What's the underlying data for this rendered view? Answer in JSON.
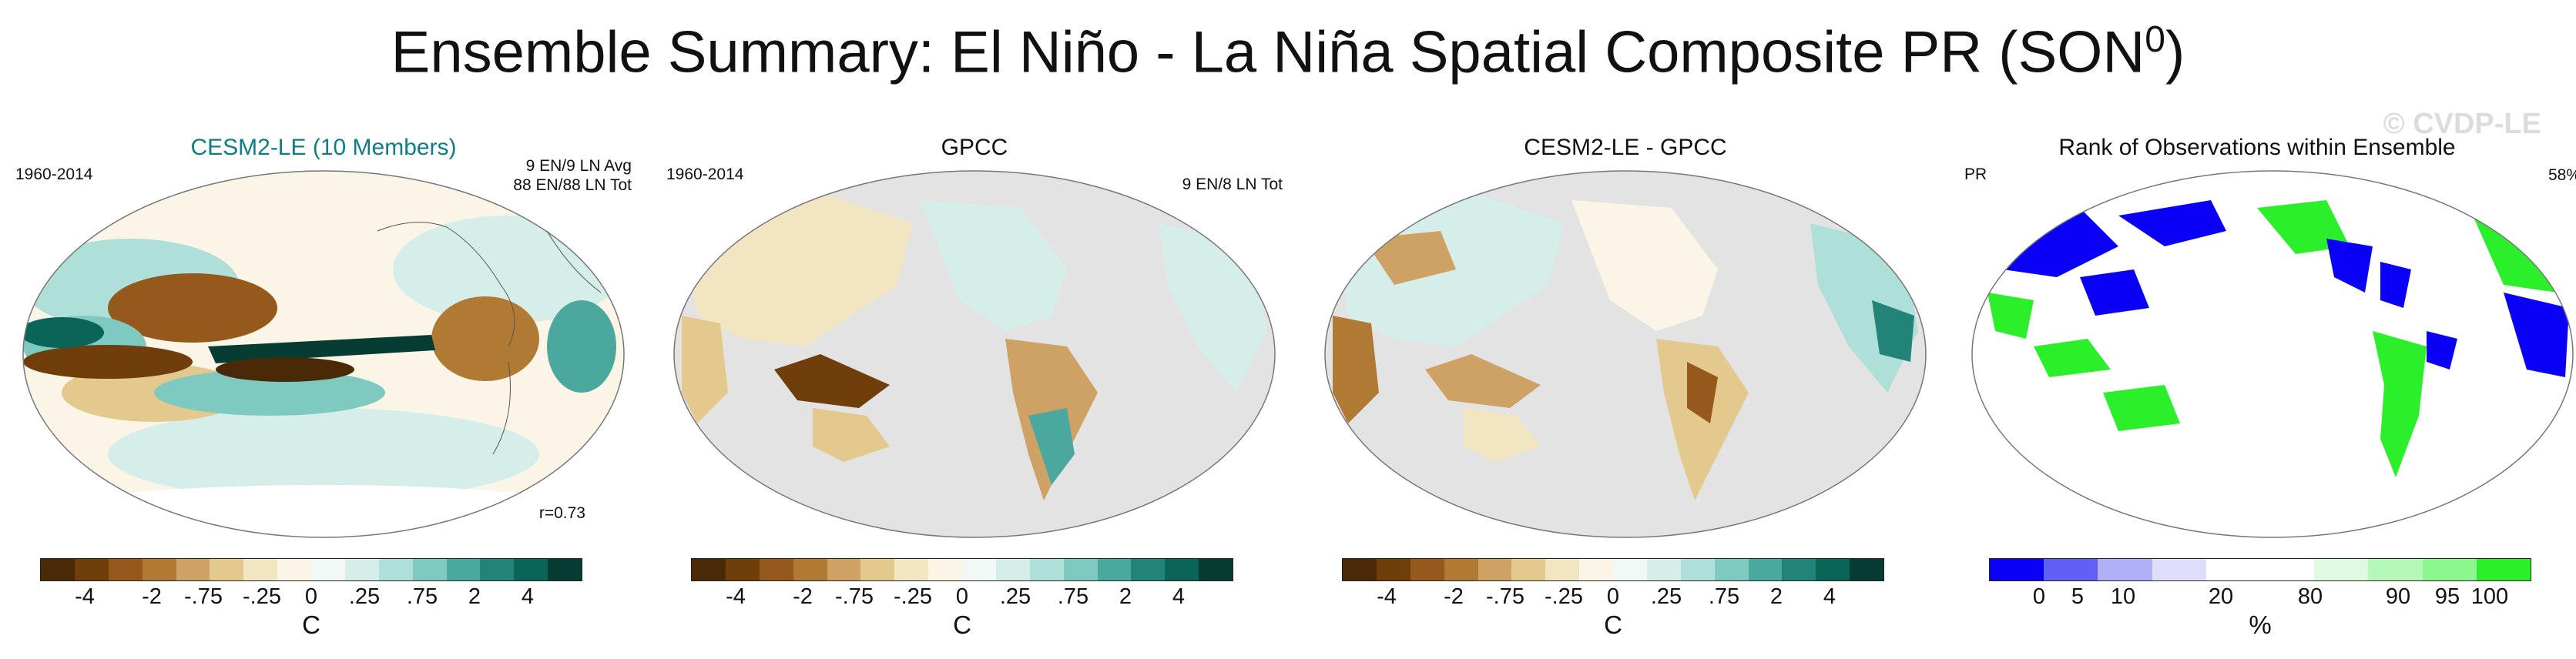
{
  "figure": {
    "title": "Ensemble Summary: El Niño - La Niña Spatial Composite PR (SON",
    "title_sup": "0",
    "title_close": ")",
    "watermark": "© CVDP-LE"
  },
  "diverging_colors": [
    "#4a2a06",
    "#6f3e0b",
    "#94591b",
    "#b07a35",
    "#cea264",
    "#e4c98f",
    "#f2e5c2",
    "#fbf5e7",
    "#f1f8f6",
    "#d6eeea",
    "#aee0d9",
    "#7ecac0",
    "#4ba89e",
    "#228479",
    "#0b6458",
    "#073c33"
  ],
  "rank_colors": [
    "#0a00f5",
    "#6060f7",
    "#b0b0f7",
    "#dedefa",
    "#ffffff",
    "#ffffff",
    "#dffae0",
    "#b5f7b8",
    "#8cf78f",
    "#2aef2a"
  ],
  "panels": [
    {
      "title": "CESM2-LE (10 Members)",
      "top_left": "1960-2014",
      "top_right": [
        "9 EN/9 LN Avg",
        "88 EN/88 LN Tot"
      ],
      "bottom_right": "r=0.73",
      "colorbar": {
        "ticks": [
          "-4",
          "-2",
          "-.75",
          "-.25",
          "0",
          ".25",
          ".75",
          "2",
          "4"
        ],
        "unit": "C"
      }
    },
    {
      "title": "GPCC",
      "top_left": "1960-2014",
      "top_right": [
        "9 EN/8 LN Tot"
      ],
      "colorbar": {
        "ticks": [
          "-4",
          "-2",
          "-.75",
          "-.25",
          "0",
          ".25",
          ".75",
          "2",
          "4"
        ],
        "unit": "C"
      }
    },
    {
      "title": "CESM2-LE - GPCC",
      "colorbar": {
        "ticks": [
          "-4",
          "-2",
          "-.75",
          "-.25",
          "0",
          ".25",
          ".75",
          "2",
          "4"
        ],
        "unit": "C"
      }
    },
    {
      "title": "Rank of Observations within Ensemble",
      "top_left": "PR",
      "top_right": [
        "58%"
      ],
      "colorbar": {
        "ticks": [
          "0",
          "5",
          "10",
          "20",
          "80",
          "90",
          "95",
          "100"
        ],
        "unit": "%"
      }
    }
  ]
}
